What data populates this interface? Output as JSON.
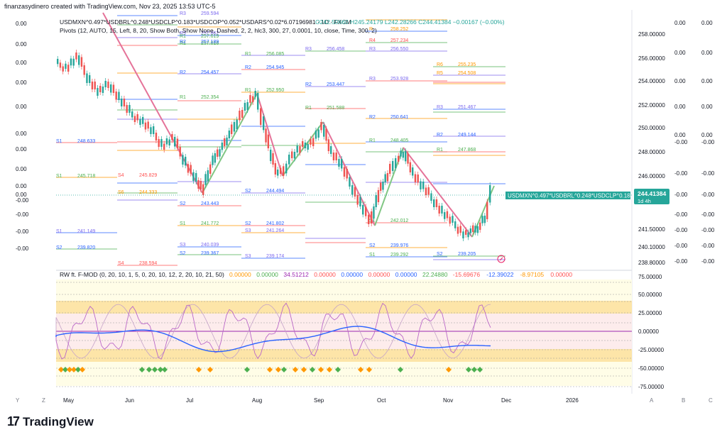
{
  "header": {
    "attribution": "finanzasydinero created with TradingView.com, Nov 23, 2025 13:53 UTC-5"
  },
  "main_legend": {
    "symbol_line": "USDMXN^0.497*USDBRL^0.248*USDCLP^0.183*USDCOP^0.052*USDARS^0.02*6.07196981 · 1D · FXCM",
    "ohlc": "O242.50660 H245.24179 L242.28266 C244.41384 −0.00167 (−0.00%)",
    "pivots_line": "Pivots (12, AUTO, 15, Left, 8, 20, Show Both, Show None, Dashed, 2, 2, hlc3, 300, 27, 0.0001, 10, close, Time, 300, 2)"
  },
  "price_axis": {
    "ticks": [
      "258.00000",
      "256.00000",
      "254.00000",
      "252.00000",
      "250.00000",
      "248.00000",
      "246.00000",
      "243.00000",
      "241.50000",
      "240.10000",
      "238.80000"
    ],
    "current_label": "USDMXN^0.497*USDBRL^0.248*USDCLP^0.18...",
    "current_price": "244.41384",
    "countdown": "1d 4h"
  },
  "side_columns": {
    "col1": [
      "0.00",
      "0.00",
      "0.00",
      "0.00",
      "0.00",
      "-0.00",
      "-0.00",
      "-0.00",
      "-0.00",
      "-0.00",
      "-0.00",
      "-0.00"
    ],
    "col2": [
      "0.00",
      "0.00",
      "0.00",
      "0.00",
      "0.00",
      "-0.00",
      "-0.00",
      "-0.00",
      "-0.00",
      "-0.00",
      "-0.00",
      "-0.00"
    ]
  },
  "left_values": [
    "0.00",
    "0.00",
    "0.00",
    "0.00",
    "0.00",
    "0.00",
    "0.00",
    "0.00",
    "0.00",
    "0.00",
    "-0.00",
    "-0.00",
    "-0.00",
    "-0.00",
    "-0.00",
    "-0.00",
    "-0.00",
    "-0.00"
  ],
  "pivot_labels": [
    {
      "t": "R3",
      "v": "259.594",
      "c": "#7b68ee"
    },
    {
      "t": "R3",
      "v": "257.862",
      "c": "#7b68ee"
    },
    {
      "t": "R1",
      "v": "257.619",
      "c": "#4caf50"
    },
    {
      "t": "R1",
      "v": "257.016",
      "c": "#4caf50"
    },
    {
      "t": "R2",
      "v": "257.189",
      "c": "#2962ff"
    },
    {
      "t": "R1",
      "v": "256.085",
      "c": "#4caf50"
    },
    {
      "t": "R2",
      "v": "254.945",
      "c": "#2962ff"
    },
    {
      "t": "R2",
      "v": "254.457",
      "c": "#2962ff"
    },
    {
      "t": "R1",
      "v": "252.950",
      "c": "#4caf50"
    },
    {
      "t": "R1",
      "v": "252.354",
      "c": "#4caf50"
    },
    {
      "t": "R1",
      "v": "251.588",
      "c": "#4caf50"
    },
    {
      "t": "R2",
      "v": "253.447",
      "c": "#2962ff"
    },
    {
      "t": "R3",
      "v": "253.928",
      "c": "#7b68ee"
    },
    {
      "t": "R2",
      "v": "250.641",
      "c": "#2962ff"
    },
    {
      "t": "R1",
      "v": "248.405",
      "c": "#4caf50"
    },
    {
      "t": "S4",
      "v": "245.829",
      "c": "#ff5252"
    },
    {
      "t": "S6",
      "v": "244.333",
      "c": "#ff9800"
    },
    {
      "t": "S2",
      "v": "244.494",
      "c": "#2962ff"
    },
    {
      "t": "S2",
      "v": "243.443",
      "c": "#2962ff"
    },
    {
      "t": "S1",
      "v": "241.772",
      "c": "#4caf50"
    },
    {
      "t": "S2",
      "v": "241.802",
      "c": "#2962ff"
    },
    {
      "t": "S3",
      "v": "241.264",
      "c": "#7b68ee"
    },
    {
      "t": "S3",
      "v": "240.039",
      "c": "#7b68ee"
    },
    {
      "t": "S2",
      "v": "239.367",
      "c": "#2962ff"
    },
    {
      "t": "S3",
      "v": "239.174",
      "c": "#7b68ee"
    },
    {
      "t": "S4",
      "v": "238.594",
      "c": "#ff5252"
    },
    {
      "t": "S2",
      "v": "239.976",
      "c": "#2962ff"
    },
    {
      "t": "S1",
      "v": "239.292",
      "c": "#4caf50"
    },
    {
      "t": "S1",
      "v": "242.012",
      "c": "#4caf50"
    },
    {
      "t": "R2",
      "v": "249.144",
      "c": "#2962ff"
    },
    {
      "t": "R6",
      "v": "255.235",
      "c": "#ff9800"
    },
    {
      "t": "R5",
      "v": "254.508",
      "c": "#ff9800"
    },
    {
      "t": "R4",
      "v": "257.234",
      "c": "#ff5252"
    },
    {
      "t": "R3",
      "v": "256.550",
      "c": "#7b68ee"
    },
    {
      "t": "R3",
      "v": "256.458",
      "c": "#7b68ee"
    },
    {
      "t": "R3",
      "v": "251.467",
      "c": "#7b68ee"
    },
    {
      "t": "R1",
      "v": "247.868",
      "c": "#4caf50"
    },
    {
      "t": "S2",
      "v": "239.205",
      "c": "#2962ff"
    },
    {
      "t": "S1",
      "v": "245.718",
      "c": "#4caf50"
    },
    {
      "t": "S1",
      "v": "248.633",
      "c": "#2962ff"
    },
    {
      "t": "S1",
      "v": "241.149",
      "c": "#7b68ee"
    },
    {
      "t": "S2",
      "v": "239.820",
      "c": "#2962ff"
    },
    {
      "t": "R",
      "v": "258.252",
      "c": "#ff9800"
    }
  ],
  "oscillator": {
    "legend": "RW ft. F-MOD (0, 20, 10, 1, 5, 0, 20, 10, 12, 2, 20, 10, 21, 50)",
    "values": [
      {
        "v": "0.00000",
        "c": "#ff9800"
      },
      {
        "v": "0.00000",
        "c": "#4caf50"
      },
      {
        "v": "34.51212",
        "c": "#9c27b0"
      },
      {
        "v": "0.00000",
        "c": "#ff5252"
      },
      {
        "v": "0.00000",
        "c": "#2962ff"
      },
      {
        "v": "0.00000",
        "c": "#ff5252"
      },
      {
        "v": "0.00000",
        "c": "#2962ff"
      },
      {
        "v": "22.24880",
        "c": "#4caf50"
      },
      {
        "v": "-15.69676",
        "c": "#ff5252"
      },
      {
        "v": "-12.39022",
        "c": "#2962ff"
      },
      {
        "v": "-8.97105",
        "c": "#ff9800"
      },
      {
        "v": "0.00000",
        "c": "#ff5252"
      }
    ],
    "axis_ticks": [
      "75.00000",
      "50.00000",
      "25.00000",
      "0.00000",
      "-25.00000",
      "-50.00000",
      "-75.00000"
    ]
  },
  "time_axis": {
    "labels": [
      "May",
      "Jun",
      "Jul",
      "Aug",
      "Sep",
      "Oct",
      "Nov",
      "Dec",
      "2026"
    ],
    "corner_left": [
      "Y",
      "Z"
    ],
    "corner_right": [
      "A",
      "B",
      "C"
    ]
  },
  "colors": {
    "up": "#26a69a",
    "down": "#ef5350",
    "zigzag_up": "#81c784",
    "zigzag_down": "#e57399",
    "accent": "#2962ff",
    "current_price_bg": "#26a69a"
  },
  "footer": {
    "brand": "TradingView"
  }
}
